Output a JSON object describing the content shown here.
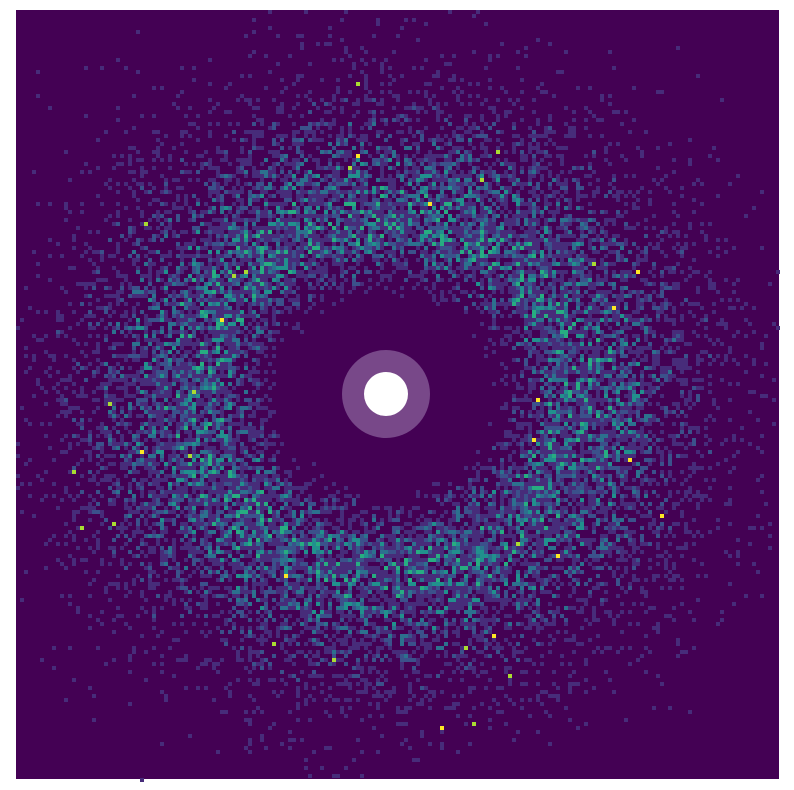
{
  "image": {
    "background": "#440154",
    "palette": [
      "#472c7a",
      "#3b518b",
      "#2c718e",
      "#21908d",
      "#27ad81",
      "#5cc863",
      "#aadc32",
      "#fde725"
    ],
    "halo_color": "#a484b4",
    "center_color": "#ffffff"
  }
}
